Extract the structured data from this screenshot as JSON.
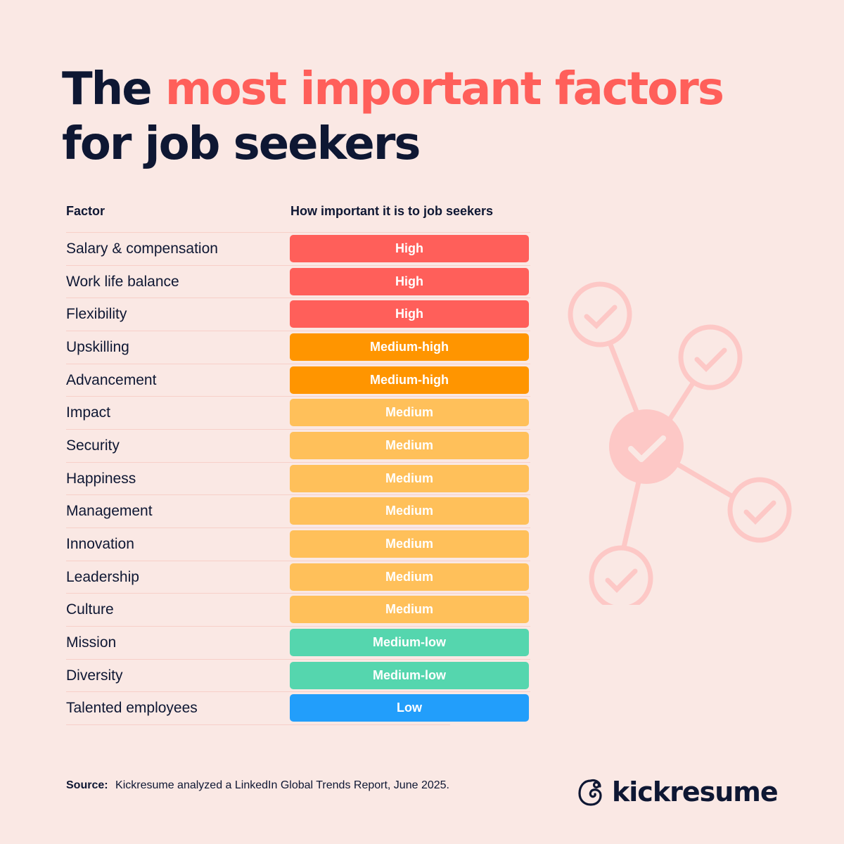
{
  "title": {
    "part1": "The ",
    "accent": "most important factors",
    "part2": "for job seekers"
  },
  "table": {
    "headers": {
      "factor": "Factor",
      "importance": "How important it is to job seekers"
    },
    "rows": [
      {
        "factor": "Salary & compensation",
        "level": "High",
        "color": "#FF5F5A"
      },
      {
        "factor": "Work life balance",
        "level": "High",
        "color": "#FF5F5A"
      },
      {
        "factor": "Flexibility",
        "level": "High",
        "color": "#FF5F5A"
      },
      {
        "factor": "Upskilling",
        "level": "Medium-high",
        "color": "#FF9500"
      },
      {
        "factor": "Advancement",
        "level": "Medium-high",
        "color": "#FF9500"
      },
      {
        "factor": "Impact",
        "level": "Medium",
        "color": "#FFC05A"
      },
      {
        "factor": "Security",
        "level": "Medium",
        "color": "#FFC05A"
      },
      {
        "factor": "Happiness",
        "level": "Medium",
        "color": "#FFC05A"
      },
      {
        "factor": "Management",
        "level": "Medium",
        "color": "#FFC05A"
      },
      {
        "factor": "Innovation",
        "level": "Medium",
        "color": "#FFC05A"
      },
      {
        "factor": "Leadership",
        "level": "Medium",
        "color": "#FFC05A"
      },
      {
        "factor": "Culture",
        "level": "Medium",
        "color": "#FFC05A"
      },
      {
        "factor": "Mission",
        "level": "Medium-low",
        "color": "#55D6AE"
      },
      {
        "factor": "Diversity",
        "level": "Medium-low",
        "color": "#55D6AE"
      },
      {
        "factor": "Talented employees",
        "level": "Low",
        "color": "#229EFB"
      }
    ]
  },
  "chart_data": {
    "type": "table",
    "title": "The most important factors for job seekers",
    "columns": [
      "Factor",
      "How important it is to job seekers"
    ],
    "categories": [
      "Salary & compensation",
      "Work life balance",
      "Flexibility",
      "Upskilling",
      "Advancement",
      "Impact",
      "Security",
      "Happiness",
      "Management",
      "Innovation",
      "Leadership",
      "Culture",
      "Mission",
      "Diversity",
      "Talented employees"
    ],
    "values": [
      "High",
      "High",
      "High",
      "Medium-high",
      "Medium-high",
      "Medium",
      "Medium",
      "Medium",
      "Medium",
      "Medium",
      "Medium",
      "Medium",
      "Medium-low",
      "Medium-low",
      "Low"
    ],
    "legend": {
      "High": "#FF5F5A",
      "Medium-high": "#FF9500",
      "Medium": "#FFC05A",
      "Medium-low": "#55D6AE",
      "Low": "#229EFB"
    },
    "source": "Kickresume analyzed a LinkedIn Global Trends Report, June 2025."
  },
  "colors": {
    "background": "#FAE8E4",
    "text": "#0E1733",
    "accent": "#FF5F5A",
    "divider": "#F7CFC8",
    "graphic": "#FDC8C6"
  },
  "footer": {
    "source_label": "Source:",
    "source_text": "Kickresume analyzed a LinkedIn Global Trends Report, June 2025.",
    "brand": "kickresume"
  }
}
